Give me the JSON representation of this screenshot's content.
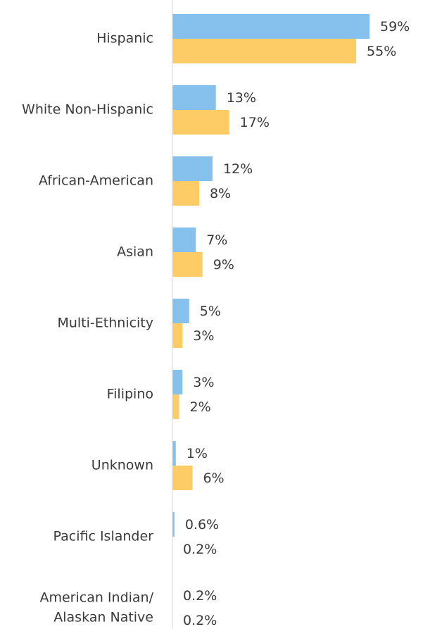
{
  "chart_data": {
    "type": "bar",
    "orientation": "horizontal",
    "categories": [
      [
        "Hispanic"
      ],
      [
        "White Non-Hispanic"
      ],
      [
        "African-American"
      ],
      [
        "Asian"
      ],
      [
        "Multi-Ethnicity"
      ],
      [
        "Filipino"
      ],
      [
        "Unknown"
      ],
      [
        "Pacific Islander"
      ],
      [
        "American Indian/",
        "Alaskan Native"
      ]
    ],
    "series": [
      {
        "color": "#85C1EC",
        "values": [
          59,
          13,
          12,
          7,
          5,
          3,
          1,
          0.6,
          0.2
        ],
        "labels": [
          "59%",
          "13%",
          "12%",
          "7%",
          "5%",
          "3%",
          "1%",
          "0.6%",
          "0.2%"
        ]
      },
      {
        "color": "#FDCC66",
        "values": [
          55,
          17,
          8,
          9,
          3,
          2,
          6,
          0.2,
          0.2
        ],
        "labels": [
          "55%",
          "17%",
          "8%",
          "9%",
          "3%",
          "2%",
          "6%",
          "0.2%",
          "0.2%"
        ]
      }
    ],
    "xlim": [
      0,
      60
    ],
    "unit": "%",
    "grid": false,
    "legend": "none",
    "baseline_color": "#d9d9d9"
  }
}
